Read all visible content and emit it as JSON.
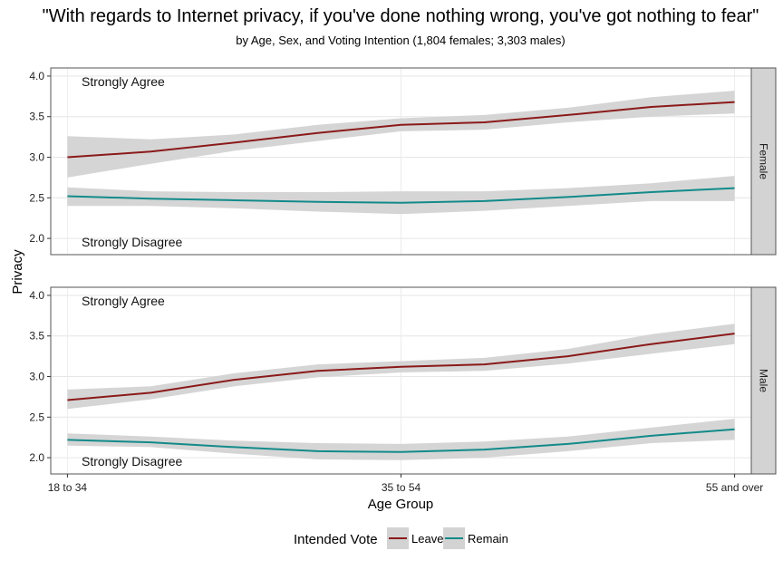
{
  "chart_data": {
    "type": "line",
    "title": "\"With regards to Internet privacy, if you've done nothing wrong, you've got nothing to fear\"",
    "subtitle": "by Age, Sex, and Voting Intention (1,804 females; 3,303 males)",
    "xlabel": "Age Group",
    "ylabel": "Privacy",
    "categories": [
      "18 to 34",
      "35 to 54",
      "55 and over"
    ],
    "ylim": [
      1.8,
      4.1
    ],
    "yticks": [
      2.0,
      2.5,
      3.0,
      3.5,
      4.0
    ],
    "ytick_labels": [
      "2.0",
      "2.5",
      "3.0",
      "3.5",
      "4.0"
    ],
    "grid": true,
    "legend": {
      "title": "Intended Vote",
      "position": "bottom",
      "entries": [
        {
          "label": "Leave",
          "color": "#8b1a1a"
        },
        {
          "label": "Remain",
          "color": "#138a8a"
        }
      ]
    },
    "colors": {
      "Leave": "#8b1a1a",
      "Remain": "#138a8a",
      "ribbon": "#d3d3d3",
      "strip": "#d3d3d3"
    },
    "panels": [
      {
        "name": "Female",
        "top_annotation": "Strongly Agree",
        "bottom_annotation": "Strongly Disagree",
        "series": [
          {
            "name": "Leave",
            "x": [
              1.0,
              1.25,
              1.5,
              1.75,
              2.0,
              2.25,
              2.5,
              2.75,
              3.0
            ],
            "y": [
              3.0,
              3.07,
              3.18,
              3.3,
              3.4,
              3.43,
              3.52,
              3.62,
              3.68
            ],
            "lower": [
              2.75,
              2.92,
              3.08,
              3.2,
              3.32,
              3.34,
              3.43,
              3.5,
              3.54
            ],
            "upper": [
              3.26,
              3.22,
              3.28,
              3.4,
              3.48,
              3.52,
              3.61,
              3.74,
              3.82
            ]
          },
          {
            "name": "Remain",
            "x": [
              1.0,
              1.25,
              1.5,
              1.75,
              2.0,
              2.25,
              2.5,
              2.75,
              3.0
            ],
            "y": [
              2.52,
              2.49,
              2.47,
              2.45,
              2.44,
              2.46,
              2.51,
              2.57,
              2.62
            ],
            "lower": [
              2.4,
              2.4,
              2.37,
              2.33,
              2.3,
              2.34,
              2.4,
              2.46,
              2.46
            ],
            "upper": [
              2.63,
              2.58,
              2.57,
              2.57,
              2.58,
              2.58,
              2.62,
              2.68,
              2.77
            ]
          }
        ]
      },
      {
        "name": "Male",
        "top_annotation": "Strongly Agree",
        "bottom_annotation": "Strongly Disagree",
        "series": [
          {
            "name": "Leave",
            "x": [
              1.0,
              1.25,
              1.5,
              1.75,
              2.0,
              2.25,
              2.5,
              2.75,
              3.0
            ],
            "y": [
              2.71,
              2.8,
              2.96,
              3.07,
              3.12,
              3.15,
              3.25,
              3.4,
              3.53
            ],
            "lower": [
              2.6,
              2.72,
              2.88,
              2.99,
              3.05,
              3.07,
              3.16,
              3.28,
              3.4
            ],
            "upper": [
              2.84,
              2.88,
              3.04,
              3.15,
              3.19,
              3.23,
              3.34,
              3.52,
              3.65
            ]
          },
          {
            "name": "Remain",
            "x": [
              1.0,
              1.25,
              1.5,
              1.75,
              2.0,
              2.25,
              2.5,
              2.75,
              3.0
            ],
            "y": [
              2.22,
              2.19,
              2.13,
              2.08,
              2.07,
              2.1,
              2.17,
              2.27,
              2.35
            ],
            "lower": [
              2.15,
              2.13,
              2.05,
              1.98,
              1.97,
              2.0,
              2.08,
              2.18,
              2.22
            ],
            "upper": [
              2.3,
              2.26,
              2.21,
              2.18,
              2.17,
              2.2,
              2.26,
              2.37,
              2.48
            ]
          }
        ]
      }
    ]
  }
}
